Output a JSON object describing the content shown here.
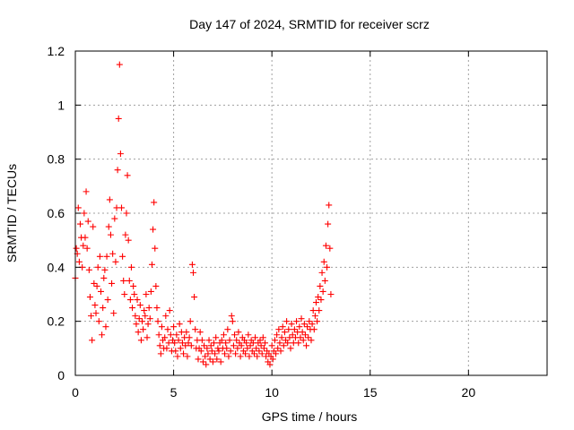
{
  "chart_data": {
    "type": "scatter",
    "title": "Day 147 of 2024, SRMTID for receiver scrz",
    "xlabel": "GPS time / hours",
    "ylabel": "SRMTID / TECUs",
    "xlim": [
      0,
      24
    ],
    "ylim": [
      0,
      1.2
    ],
    "xticks": [
      0,
      5,
      10,
      15,
      20
    ],
    "xtick_labels": [
      "0",
      "5",
      "10",
      "15",
      "20"
    ],
    "yticks": [
      0,
      0.2,
      0.4,
      0.6,
      0.8,
      1,
      1.2
    ],
    "ytick_labels": [
      "0",
      "0.2",
      "0.4",
      "0.6",
      "0.8",
      "1",
      "1.2"
    ],
    "grid": true,
    "marker": "+",
    "series": [
      {
        "name": "SRMTID",
        "color": "#ff0000",
        "points": [
          [
            0.0,
            0.36
          ],
          [
            0.05,
            0.47
          ],
          [
            0.1,
            0.45
          ],
          [
            0.15,
            0.62
          ],
          [
            0.2,
            0.42
          ],
          [
            0.25,
            0.56
          ],
          [
            0.3,
            0.51
          ],
          [
            0.35,
            0.4
          ],
          [
            0.4,
            0.48
          ],
          [
            0.45,
            0.6
          ],
          [
            0.5,
            0.51
          ],
          [
            0.55,
            0.68
          ],
          [
            0.6,
            0.47
          ],
          [
            0.65,
            0.57
          ],
          [
            0.7,
            0.39
          ],
          [
            0.75,
            0.29
          ],
          [
            0.8,
            0.22
          ],
          [
            0.85,
            0.13
          ],
          [
            0.9,
            0.55
          ],
          [
            0.95,
            0.34
          ],
          [
            1.0,
            0.26
          ],
          [
            1.05,
            0.23
          ],
          [
            1.1,
            0.33
          ],
          [
            1.15,
            0.4
          ],
          [
            1.2,
            0.2
          ],
          [
            1.25,
            0.44
          ],
          [
            1.3,
            0.31
          ],
          [
            1.35,
            0.15
          ],
          [
            1.4,
            0.25
          ],
          [
            1.45,
            0.36
          ],
          [
            1.5,
            0.39
          ],
          [
            1.55,
            0.18
          ],
          [
            1.6,
            0.44
          ],
          [
            1.65,
            0.28
          ],
          [
            1.7,
            0.55
          ],
          [
            1.75,
            0.65
          ],
          [
            1.8,
            0.52
          ],
          [
            1.85,
            0.34
          ],
          [
            1.9,
            0.45
          ],
          [
            1.95,
            0.23
          ],
          [
            2.0,
            0.58
          ],
          [
            2.05,
            0.42
          ],
          [
            2.1,
            0.62
          ],
          [
            2.15,
            0.76
          ],
          [
            2.2,
            0.95
          ],
          [
            2.25,
            1.15
          ],
          [
            2.3,
            0.82
          ],
          [
            2.35,
            0.62
          ],
          [
            2.4,
            0.44
          ],
          [
            2.45,
            0.35
          ],
          [
            2.5,
            0.3
          ],
          [
            2.55,
            0.52
          ],
          [
            2.6,
            0.6
          ],
          [
            2.65,
            0.74
          ],
          [
            2.7,
            0.5
          ],
          [
            2.75,
            0.35
          ],
          [
            2.8,
            0.28
          ],
          [
            2.85,
            0.4
          ],
          [
            2.9,
            0.25
          ],
          [
            2.95,
            0.33
          ],
          [
            3.0,
            0.3
          ],
          [
            3.05,
            0.22
          ],
          [
            3.1,
            0.19
          ],
          [
            3.15,
            0.28
          ],
          [
            3.2,
            0.16
          ],
          [
            3.25,
            0.21
          ],
          [
            3.3,
            0.26
          ],
          [
            3.35,
            0.13
          ],
          [
            3.4,
            0.2
          ],
          [
            3.45,
            0.17
          ],
          [
            3.5,
            0.24
          ],
          [
            3.55,
            0.22
          ],
          [
            3.6,
            0.3
          ],
          [
            3.65,
            0.14
          ],
          [
            3.7,
            0.19
          ],
          [
            3.75,
            0.25
          ],
          [
            3.8,
            0.21
          ],
          [
            3.85,
            0.31
          ],
          [
            3.9,
            0.41
          ],
          [
            3.95,
            0.54
          ],
          [
            4.0,
            0.64
          ],
          [
            4.05,
            0.47
          ],
          [
            4.1,
            0.33
          ],
          [
            4.15,
            0.25
          ],
          [
            4.2,
            0.2
          ],
          [
            4.25,
            0.15
          ],
          [
            4.3,
            0.11
          ],
          [
            4.35,
            0.08
          ],
          [
            4.4,
            0.18
          ],
          [
            4.45,
            0.13
          ],
          [
            4.5,
            0.1
          ],
          [
            4.55,
            0.14
          ],
          [
            4.6,
            0.22
          ],
          [
            4.65,
            0.1
          ],
          [
            4.7,
            0.17
          ],
          [
            4.75,
            0.12
          ],
          [
            4.8,
            0.24
          ],
          [
            4.85,
            0.15
          ],
          [
            4.9,
            0.09
          ],
          [
            4.95,
            0.13
          ],
          [
            5.0,
            0.18
          ],
          [
            5.05,
            0.12
          ],
          [
            5.1,
            0.09
          ],
          [
            5.15,
            0.15
          ],
          [
            5.2,
            0.07
          ],
          [
            5.25,
            0.13
          ],
          [
            5.3,
            0.19
          ],
          [
            5.35,
            0.1
          ],
          [
            5.4,
            0.16
          ],
          [
            5.45,
            0.12
          ],
          [
            5.5,
            0.08
          ],
          [
            5.55,
            0.14
          ],
          [
            5.6,
            0.11
          ],
          [
            5.65,
            0.16
          ],
          [
            5.7,
            0.07
          ],
          [
            5.75,
            0.12
          ],
          [
            5.8,
            0.14
          ],
          [
            5.85,
            0.2
          ],
          [
            5.9,
            0.11
          ],
          [
            5.95,
            0.41
          ],
          [
            6.0,
            0.38
          ],
          [
            6.05,
            0.29
          ],
          [
            6.1,
            0.17
          ],
          [
            6.15,
            0.1
          ],
          [
            6.2,
            0.13
          ],
          [
            6.25,
            0.06
          ],
          [
            6.3,
            0.1
          ],
          [
            6.35,
            0.16
          ],
          [
            6.4,
            0.09
          ],
          [
            6.45,
            0.13
          ],
          [
            6.5,
            0.05
          ],
          [
            6.55,
            0.11
          ],
          [
            6.6,
            0.07
          ],
          [
            6.65,
            0.04
          ],
          [
            6.7,
            0.1
          ],
          [
            6.75,
            0.08
          ],
          [
            6.8,
            0.13
          ],
          [
            6.85,
            0.06
          ],
          [
            6.9,
            0.11
          ],
          [
            6.95,
            0.09
          ],
          [
            7.0,
            0.05
          ],
          [
            7.05,
            0.12
          ],
          [
            7.1,
            0.08
          ],
          [
            7.15,
            0.14
          ],
          [
            7.2,
            0.06
          ],
          [
            7.25,
            0.1
          ],
          [
            7.3,
            0.09
          ],
          [
            7.35,
            0.12
          ],
          [
            7.4,
            0.05
          ],
          [
            7.45,
            0.13
          ],
          [
            7.5,
            0.1
          ],
          [
            7.55,
            0.15
          ],
          [
            7.6,
            0.08
          ],
          [
            7.65,
            0.12
          ],
          [
            7.7,
            0.1
          ],
          [
            7.75,
            0.17
          ],
          [
            7.8,
            0.07
          ],
          [
            7.85,
            0.13
          ],
          [
            7.9,
            0.09
          ],
          [
            7.95,
            0.22
          ],
          [
            8.0,
            0.2
          ],
          [
            8.05,
            0.11
          ],
          [
            8.1,
            0.15
          ],
          [
            8.15,
            0.08
          ],
          [
            8.2,
            0.13
          ],
          [
            8.25,
            0.1
          ],
          [
            8.3,
            0.16
          ],
          [
            8.35,
            0.12
          ],
          [
            8.4,
            0.07
          ],
          [
            8.45,
            0.11
          ],
          [
            8.5,
            0.14
          ],
          [
            8.55,
            0.09
          ],
          [
            8.6,
            0.13
          ],
          [
            8.65,
            0.08
          ],
          [
            8.7,
            0.12
          ],
          [
            8.75,
            0.1
          ],
          [
            8.8,
            0.15
          ],
          [
            8.85,
            0.07
          ],
          [
            8.9,
            0.11
          ],
          [
            8.95,
            0.13
          ],
          [
            9.0,
            0.09
          ],
          [
            9.05,
            0.12
          ],
          [
            9.1,
            0.08
          ],
          [
            9.15,
            0.14
          ],
          [
            9.2,
            0.1
          ],
          [
            9.25,
            0.07
          ],
          [
            9.3,
            0.12
          ],
          [
            9.35,
            0.09
          ],
          [
            9.4,
            0.13
          ],
          [
            9.45,
            0.11
          ],
          [
            9.5,
            0.08
          ],
          [
            9.55,
            0.14
          ],
          [
            9.6,
            0.1
          ],
          [
            9.65,
            0.12
          ],
          [
            9.7,
            0.07
          ],
          [
            9.75,
            0.09
          ],
          [
            9.8,
            0.05
          ],
          [
            9.85,
            0.08
          ],
          [
            9.9,
            0.04
          ],
          [
            9.95,
            0.07
          ],
          [
            10.0,
            0.11
          ],
          [
            10.05,
            0.06
          ],
          [
            10.1,
            0.09
          ],
          [
            10.15,
            0.13
          ],
          [
            10.2,
            0.08
          ],
          [
            10.25,
            0.15
          ],
          [
            10.3,
            0.1
          ],
          [
            10.35,
            0.17
          ],
          [
            10.4,
            0.12
          ],
          [
            10.45,
            0.09
          ],
          [
            10.5,
            0.14
          ],
          [
            10.55,
            0.18
          ],
          [
            10.6,
            0.11
          ],
          [
            10.65,
            0.16
          ],
          [
            10.7,
            0.13
          ],
          [
            10.75,
            0.2
          ],
          [
            10.8,
            0.12
          ],
          [
            10.85,
            0.17
          ],
          [
            10.9,
            0.14
          ],
          [
            10.95,
            0.1
          ],
          [
            11.0,
            0.19
          ],
          [
            11.05,
            0.15
          ],
          [
            11.1,
            0.12
          ],
          [
            11.15,
            0.17
          ],
          [
            11.2,
            0.14
          ],
          [
            11.25,
            0.2
          ],
          [
            11.3,
            0.16
          ],
          [
            11.35,
            0.12
          ],
          [
            11.4,
            0.18
          ],
          [
            11.45,
            0.14
          ],
          [
            11.5,
            0.21
          ],
          [
            11.55,
            0.16
          ],
          [
            11.6,
            0.13
          ],
          [
            11.65,
            0.19
          ],
          [
            11.7,
            0.15
          ],
          [
            11.75,
            0.11
          ],
          [
            11.8,
            0.18
          ],
          [
            11.85,
            0.14
          ],
          [
            11.9,
            0.2
          ],
          [
            11.95,
            0.17
          ],
          [
            12.0,
            0.13
          ],
          [
            12.05,
            0.19
          ],
          [
            12.1,
            0.24
          ],
          [
            12.15,
            0.17
          ],
          [
            12.2,
            0.22
          ],
          [
            12.25,
            0.27
          ],
          [
            12.3,
            0.2
          ],
          [
            12.35,
            0.29
          ],
          [
            12.4,
            0.24
          ],
          [
            12.45,
            0.33
          ],
          [
            12.5,
            0.28
          ],
          [
            12.55,
            0.38
          ],
          [
            12.6,
            0.31
          ],
          [
            12.65,
            0.42
          ],
          [
            12.7,
            0.35
          ],
          [
            12.75,
            0.48
          ],
          [
            12.8,
            0.4
          ],
          [
            12.85,
            0.56
          ],
          [
            12.9,
            0.63
          ],
          [
            12.95,
            0.47
          ],
          [
            13.0,
            0.3
          ]
        ]
      }
    ]
  }
}
